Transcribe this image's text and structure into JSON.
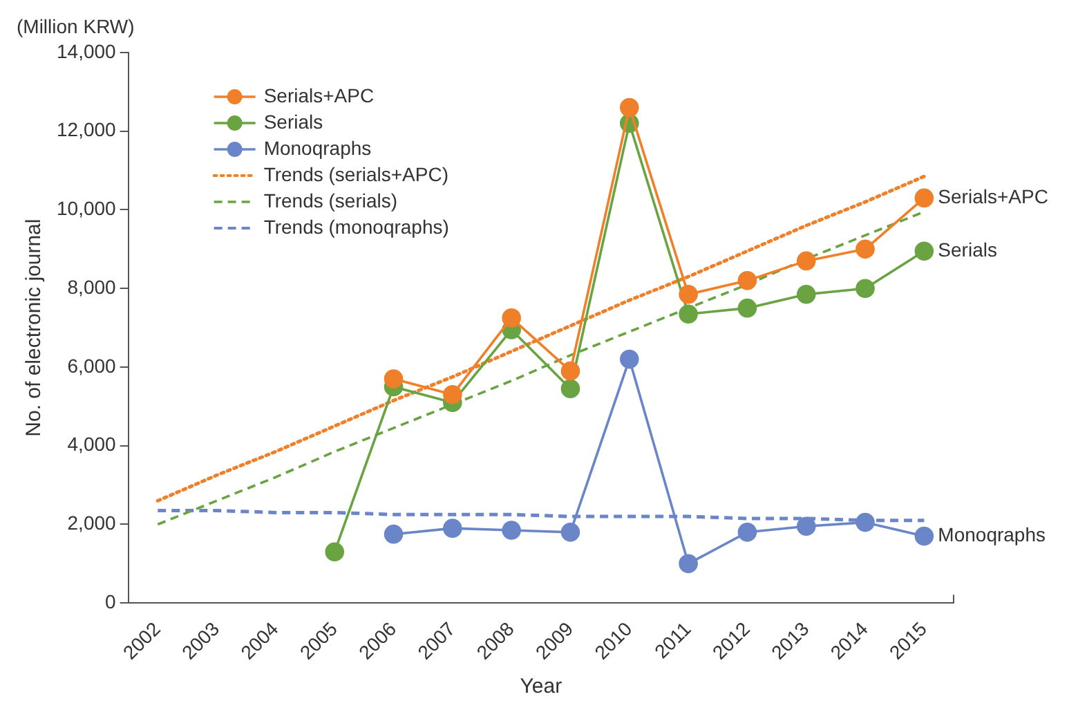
{
  "chart_data": {
    "type": "line",
    "xlabel": "Year",
    "ylabel": "No. of electronic journal",
    "categories": [
      "2002",
      "2003",
      "2004",
      "2005",
      "2006",
      "2007",
      "2008",
      "2009",
      "2010",
      "2011",
      "2012",
      "2013",
      "2014",
      "2015"
    ],
    "series": [
      {
        "name": "Serials+APC",
        "color": "#f07f2a",
        "marker": "circle",
        "line_style": "solid",
        "values": [
          null,
          null,
          null,
          null,
          5700,
          5300,
          7250,
          5900,
          12600,
          7850,
          8200,
          8700,
          9000,
          10300
        ]
      },
      {
        "name": "Serials",
        "color": "#6aa342",
        "marker": "circle",
        "line_style": "solid",
        "values": [
          null,
          null,
          null,
          1300,
          5500,
          5100,
          6950,
          5450,
          12200,
          7350,
          7500,
          7850,
          8000,
          8950
        ]
      },
      {
        "name": "Monoqraphs",
        "color": "#6a86c8",
        "marker": "circle",
        "line_style": "solid",
        "values": [
          null,
          null,
          null,
          null,
          1750,
          1900,
          1850,
          1800,
          6200,
          1000,
          1800,
          1950,
          2050,
          1700
        ]
      },
      {
        "name": "Trends (serials+APC)",
        "type": "line",
        "color": "#f07f2a",
        "marker": "none",
        "line_style": "dotted",
        "values": [
          2600,
          3250,
          3850,
          4500,
          5150,
          5750,
          6400,
          7050,
          7700,
          8300,
          8950,
          9600,
          10200,
          10850
        ]
      },
      {
        "name": "Trends (serials)",
        "type": "line",
        "color": "#6aa342",
        "marker": "none",
        "line_style": "dashed",
        "values": [
          2000,
          2600,
          3200,
          3850,
          4450,
          5050,
          5650,
          6300,
          6900,
          7500,
          8100,
          8750,
          9350,
          9950
        ]
      },
      {
        "name": "Trends (monoqraphs)",
        "type": "line",
        "color": "#6a86c8",
        "marker": "none",
        "line_style": "dashed",
        "values": [
          2350,
          2350,
          2300,
          2300,
          2250,
          2250,
          2250,
          2200,
          2200,
          2200,
          2150,
          2150,
          2100,
          2100
        ]
      }
    ],
    "ylim": [
      0,
      14000
    ],
    "yticks": [
      0,
      {
        "value": 2000,
        "label": "2,000"
      },
      {
        "value": 4000,
        "label": "4,000"
      },
      {
        "value": 6000,
        "label": "6,000"
      },
      {
        "value": 8000,
        "label": "8,000"
      },
      {
        "value": 10000,
        "label": "10,000"
      },
      {
        "value": 12000,
        "label": "12,000"
      },
      {
        "value": 14000,
        "label": "14,000"
      }
    ],
    "grid": false,
    "legend": "top left",
    "annotations": [
      "(Million KRW)",
      {
        "text": "Serials+APC",
        "x": "2015",
        "y": 10300
      },
      {
        "text": "Serials",
        "x": "2015",
        "y": 8950
      },
      {
        "text": "Monoqraphs",
        "x": "2015",
        "y": 1700
      }
    ]
  }
}
